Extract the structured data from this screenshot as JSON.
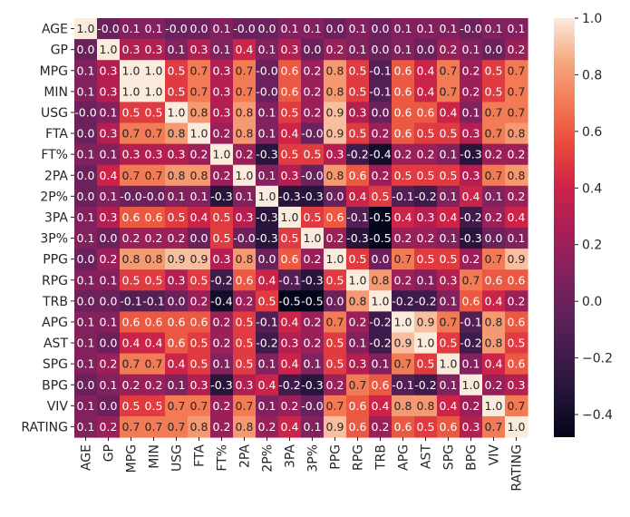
{
  "chart_data": {
    "type": "heatmap",
    "title": "",
    "xlabel": "",
    "ylabel": "",
    "labels": [
      "AGE",
      "GP",
      "MPG",
      "MIN",
      "USG",
      "FTA",
      "FT%",
      "2PA",
      "2P%",
      "3PA",
      "3P%",
      "PPG",
      "RPG",
      "TRB",
      "APG",
      "AST",
      "SPG",
      "BPG",
      "VIV",
      "RATING"
    ],
    "matrix": [
      [
        "1.0",
        "-0.0",
        "0.1",
        "0.1",
        "-0.0",
        "0.0",
        "0.1",
        "-0.0",
        "0.0",
        "0.1",
        "0.1",
        "0.0",
        "0.1",
        "0.0",
        "0.1",
        "0.1",
        "0.1",
        "-0.0",
        "0.1",
        "0.1"
      ],
      [
        "0.0",
        "1.0",
        "0.3",
        "0.3",
        "0.1",
        "0.3",
        "0.1",
        "0.4",
        "0.1",
        "0.3",
        "0.0",
        "0.2",
        "0.1",
        "0.0",
        "0.1",
        "0.0",
        "0.2",
        "0.1",
        "0.0",
        "0.2"
      ],
      [
        "0.1",
        "0.3",
        "1.0",
        "1.0",
        "0.5",
        "0.7",
        "0.3",
        "0.7",
        "-0.0",
        "0.6",
        "0.2",
        "0.8",
        "0.5",
        "-0.1",
        "0.6",
        "0.4",
        "0.7",
        "0.2",
        "0.5",
        "0.7"
      ],
      [
        "0.1",
        "0.3",
        "1.0",
        "1.0",
        "0.5",
        "0.7",
        "0.3",
        "0.7",
        "-0.0",
        "0.6",
        "0.2",
        "0.8",
        "0.5",
        "-0.1",
        "0.6",
        "0.4",
        "0.7",
        "0.2",
        "0.5",
        "0.7"
      ],
      [
        "-0.0",
        "0.1",
        "0.5",
        "0.5",
        "1.0",
        "0.8",
        "0.3",
        "0.8",
        "0.1",
        "0.5",
        "0.2",
        "0.9",
        "0.3",
        "0.0",
        "0.6",
        "0.6",
        "0.4",
        "0.1",
        "0.7",
        "0.7"
      ],
      [
        "0.0",
        "0.3",
        "0.7",
        "0.7",
        "0.8",
        "1.0",
        "0.2",
        "0.8",
        "0.1",
        "0.4",
        "-0.0",
        "0.9",
        "0.5",
        "0.2",
        "0.6",
        "0.5",
        "0.5",
        "0.3",
        "0.7",
        "0.8"
      ],
      [
        "0.1",
        "0.1",
        "0.3",
        "0.3",
        "0.3",
        "0.2",
        "1.0",
        "0.2",
        "-0.3",
        "0.5",
        "0.5",
        "0.3",
        "-0.2",
        "-0.4",
        "0.2",
        "0.2",
        "0.1",
        "-0.3",
        "0.2",
        "0.2"
      ],
      [
        "0.0",
        "0.4",
        "0.7",
        "0.7",
        "0.8",
        "0.8",
        "0.2",
        "1.0",
        "0.1",
        "0.3",
        "-0.0",
        "0.8",
        "0.6",
        "0.2",
        "0.5",
        "0.5",
        "0.5",
        "0.3",
        "0.7",
        "0.8"
      ],
      [
        "0.0",
        "0.1",
        "-0.0",
        "-0.0",
        "0.1",
        "0.1",
        "-0.3",
        "0.1",
        "1.0",
        "-0.3",
        "-0.3",
        "0.0",
        "0.4",
        "0.5",
        "-0.1",
        "-0.2",
        "0.1",
        "0.4",
        "0.1",
        "0.2"
      ],
      [
        "0.1",
        "0.3",
        "0.6",
        "0.6",
        "0.5",
        "0.4",
        "0.5",
        "0.3",
        "-0.3",
        "1.0",
        "0.5",
        "0.6",
        "-0.1",
        "-0.5",
        "0.4",
        "0.3",
        "0.4",
        "-0.2",
        "0.2",
        "0.4"
      ],
      [
        "0.1",
        "0.0",
        "0.2",
        "0.2",
        "0.2",
        "0.0",
        "0.5",
        "-0.0",
        "-0.3",
        "0.5",
        "1.0",
        "0.2",
        "-0.3",
        "-0.5",
        "0.2",
        "0.2",
        "0.1",
        "-0.3",
        "0.0",
        "0.1"
      ],
      [
        "0.0",
        "0.2",
        "0.8",
        "0.8",
        "0.9",
        "0.9",
        "0.3",
        "0.8",
        "0.0",
        "0.6",
        "0.2",
        "1.0",
        "0.5",
        "0.0",
        "0.7",
        "0.5",
        "0.5",
        "0.2",
        "0.7",
        "0.9"
      ],
      [
        "0.1",
        "0.1",
        "0.5",
        "0.5",
        "0.3",
        "0.5",
        "-0.2",
        "0.6",
        "0.4",
        "-0.1",
        "-0.3",
        "0.5",
        "1.0",
        "0.8",
        "0.2",
        "0.1",
        "0.3",
        "0.7",
        "0.6",
        "0.6"
      ],
      [
        "0.0",
        "0.0",
        "-0.1",
        "-0.1",
        "0.0",
        "0.2",
        "-0.4",
        "0.2",
        "0.5",
        "-0.5",
        "-0.5",
        "0.0",
        "0.8",
        "1.0",
        "-0.2",
        "-0.2",
        "0.1",
        "0.6",
        "0.4",
        "0.2"
      ],
      [
        "0.1",
        "0.1",
        "0.6",
        "0.6",
        "0.6",
        "0.6",
        "0.2",
        "0.5",
        "-0.1",
        "0.4",
        "0.2",
        "0.7",
        "0.2",
        "-0.2",
        "1.0",
        "0.9",
        "0.7",
        "-0.1",
        "0.8",
        "0.6"
      ],
      [
        "0.1",
        "0.0",
        "0.4",
        "0.4",
        "0.6",
        "0.5",
        "0.2",
        "0.5",
        "-0.2",
        "0.3",
        "0.2",
        "0.5",
        "0.1",
        "-0.2",
        "0.9",
        "1.0",
        "0.5",
        "-0.2",
        "0.8",
        "0.5"
      ],
      [
        "0.1",
        "0.2",
        "0.7",
        "0.7",
        "0.4",
        "0.5",
        "0.1",
        "0.5",
        "0.1",
        "0.4",
        "0.1",
        "0.5",
        "0.3",
        "0.1",
        "0.7",
        "0.5",
        "1.0",
        "0.1",
        "0.4",
        "0.6"
      ],
      [
        "0.0",
        "0.1",
        "0.2",
        "0.2",
        "0.1",
        "0.3",
        "-0.3",
        "0.3",
        "0.4",
        "-0.2",
        "-0.3",
        "0.2",
        "0.7",
        "0.6",
        "-0.1",
        "-0.2",
        "0.1",
        "1.0",
        "0.2",
        "0.3"
      ],
      [
        "0.1",
        "0.0",
        "0.5",
        "0.5",
        "0.7",
        "0.7",
        "0.2",
        "0.7",
        "0.1",
        "0.2",
        "-0.0",
        "0.7",
        "0.6",
        "0.4",
        "0.8",
        "0.8",
        "0.4",
        "0.2",
        "1.0",
        "0.7"
      ],
      [
        "0.1",
        "0.2",
        "0.7",
        "0.7",
        "0.7",
        "0.8",
        "0.2",
        "0.8",
        "0.2",
        "0.4",
        "0.1",
        "0.9",
        "0.6",
        "0.2",
        "0.6",
        "0.5",
        "0.6",
        "0.3",
        "0.7",
        "1.0"
      ]
    ],
    "colorbar": {
      "min": -0.48,
      "max": 1.0,
      "ticks": [
        "1.0",
        "0.8",
        "0.6",
        "0.4",
        "0.2",
        "0.0",
        "−0.2",
        "−0.4"
      ],
      "tick_values": [
        1.0,
        0.8,
        0.6,
        0.4,
        0.2,
        0.0,
        -0.2,
        -0.4
      ]
    },
    "colormap": "rocket"
  }
}
